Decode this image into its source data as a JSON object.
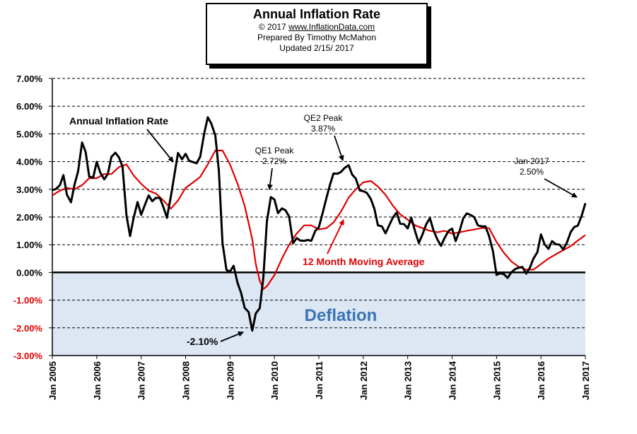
{
  "header": {
    "title": "Annual  Inflation Rate",
    "copyright_prefix": "© 2017  ",
    "site": "www.InflationData.com",
    "prepared": "Prepared  By Timothy McMahon",
    "updated": "Updated  2/15/ 2017"
  },
  "colors": {
    "inflation_line": "#000000",
    "moving_average_line": "#e00000",
    "deflation_fill": "#dde6f3",
    "deflation_text": "#3a74b4",
    "negative_tick_text": "#e00000"
  },
  "chart_data": {
    "type": "line",
    "title": "Annual  Inflation Rate",
    "ylim": [
      -3,
      7
    ],
    "y_ticks": [
      "7.00%",
      "6.00%",
      "5.00%",
      "4.00%",
      "3.00%",
      "2.00%",
      "1.00%",
      "0.00%",
      "-1.00%",
      "-2.00%",
      "-3.00%"
    ],
    "y_tick_values": [
      7,
      6,
      5,
      4,
      3,
      2,
      1,
      0,
      -1,
      -2,
      -3
    ],
    "xlim": [
      2005,
      2017
    ],
    "x_ticks": [
      "Jan 2005",
      "Jan 2006",
      "Jan 2007",
      "Jan 2008",
      "Jan 2009",
      "Jan 2010",
      "Jan 2011",
      "Jan 2012",
      "Jan 2013",
      "Jan 2014",
      "Jan 2015",
      "Jan 2016",
      "Jan 2017"
    ],
    "x_tick_values": [
      2005,
      2006,
      2007,
      2008,
      2009,
      2010,
      2011,
      2012,
      2013,
      2014,
      2015,
      2016,
      2017
    ],
    "grid": "horizontal dashed",
    "shaded_region": {
      "label": "Deflation",
      "y_from": -3,
      "y_to": 0
    },
    "series": [
      {
        "name": "Annual Inflation Rate",
        "x": [
          2005.0,
          2005.08,
          2005.17,
          2005.25,
          2005.33,
          2005.42,
          2005.5,
          2005.58,
          2005.67,
          2005.75,
          2005.83,
          2005.92,
          2006.0,
          2006.08,
          2006.17,
          2006.25,
          2006.33,
          2006.42,
          2006.5,
          2006.58,
          2006.67,
          2006.75,
          2006.83,
          2006.92,
          2007.0,
          2007.08,
          2007.17,
          2007.25,
          2007.33,
          2007.42,
          2007.5,
          2007.58,
          2007.67,
          2007.75,
          2007.83,
          2007.92,
          2008.0,
          2008.08,
          2008.17,
          2008.25,
          2008.33,
          2008.42,
          2008.5,
          2008.58,
          2008.67,
          2008.75,
          2008.83,
          2008.92,
          2009.0,
          2009.08,
          2009.17,
          2009.25,
          2009.33,
          2009.42,
          2009.5,
          2009.58,
          2009.67,
          2009.75,
          2009.83,
          2009.92,
          2010.0,
          2010.08,
          2010.17,
          2010.25,
          2010.33,
          2010.42,
          2010.5,
          2010.58,
          2010.67,
          2010.75,
          2010.83,
          2010.92,
          2011.0,
          2011.08,
          2011.17,
          2011.25,
          2011.33,
          2011.42,
          2011.5,
          2011.58,
          2011.67,
          2011.75,
          2011.83,
          2011.92,
          2012.0,
          2012.08,
          2012.17,
          2012.25,
          2012.33,
          2012.42,
          2012.5,
          2012.58,
          2012.67,
          2012.75,
          2012.83,
          2012.92,
          2013.0,
          2013.08,
          2013.17,
          2013.25,
          2013.33,
          2013.42,
          2013.5,
          2013.58,
          2013.67,
          2013.75,
          2013.83,
          2013.92,
          2014.0,
          2014.08,
          2014.17,
          2014.25,
          2014.33,
          2014.42,
          2014.5,
          2014.58,
          2014.67,
          2014.75,
          2014.83,
          2014.92,
          2015.0,
          2015.08,
          2015.17,
          2015.25,
          2015.33,
          2015.42,
          2015.5,
          2015.58,
          2015.67,
          2015.75,
          2015.83,
          2015.92,
          2016.0,
          2016.08,
          2016.17,
          2016.25,
          2016.33,
          2016.42,
          2016.5,
          2016.58,
          2016.67,
          2016.75,
          2016.83,
          2016.92,
          2017.0
        ],
        "values": [
          2.97,
          3.01,
          3.15,
          3.51,
          2.8,
          2.53,
          3.17,
          3.64,
          4.69,
          4.35,
          3.46,
          3.42,
          3.99,
          3.6,
          3.36,
          3.55,
          4.17,
          4.32,
          4.15,
          3.82,
          2.06,
          1.31,
          1.97,
          2.54,
          2.08,
          2.42,
          2.78,
          2.57,
          2.69,
          2.69,
          2.36,
          1.97,
          2.76,
          3.54,
          4.31,
          4.08,
          4.28,
          4.03,
          3.98,
          3.94,
          4.18,
          5.02,
          5.6,
          5.37,
          4.94,
          3.66,
          1.07,
          0.09,
          0.03,
          0.24,
          -0.38,
          -0.74,
          -1.28,
          -1.43,
          -2.1,
          -1.48,
          -1.29,
          -0.18,
          1.84,
          2.72,
          2.63,
          2.14,
          2.31,
          2.24,
          2.02,
          1.05,
          1.24,
          1.15,
          1.14,
          1.17,
          1.14,
          1.5,
          1.63,
          2.11,
          2.68,
          3.16,
          3.57,
          3.56,
          3.63,
          3.77,
          3.87,
          3.53,
          3.39,
          2.96,
          2.93,
          2.87,
          2.65,
          2.3,
          1.7,
          1.66,
          1.41,
          1.69,
          1.99,
          2.16,
          1.76,
          1.74,
          1.59,
          1.98,
          1.47,
          1.06,
          1.36,
          1.75,
          1.96,
          1.52,
          1.18,
          0.96,
          1.24,
          1.5,
          1.58,
          1.13,
          1.51,
          1.95,
          2.13,
          2.07,
          1.99,
          1.7,
          1.66,
          1.66,
          1.32,
          0.76,
          -0.09,
          -0.03,
          -0.07,
          -0.2,
          0.0,
          0.12,
          0.17,
          0.2,
          -0.04,
          0.17,
          0.5,
          0.73,
          1.37,
          1.02,
          0.85,
          1.13,
          1.02,
          1.0,
          0.83,
          1.06,
          1.46,
          1.64,
          1.69,
          2.07,
          2.5
        ]
      },
      {
        "name": "12 Month Moving Average",
        "x": [
          2005.0,
          2005.17,
          2005.33,
          2005.5,
          2005.67,
          2005.83,
          2006.0,
          2006.17,
          2006.33,
          2006.5,
          2006.67,
          2006.83,
          2007.0,
          2007.17,
          2007.33,
          2007.5,
          2007.67,
          2007.83,
          2008.0,
          2008.17,
          2008.33,
          2008.5,
          2008.67,
          2008.83,
          2009.0,
          2009.17,
          2009.33,
          2009.5,
          2009.58,
          2009.67,
          2009.75,
          2009.83,
          2010.0,
          2010.17,
          2010.33,
          2010.5,
          2010.67,
          2010.83,
          2011.0,
          2011.17,
          2011.33,
          2011.5,
          2011.67,
          2011.83,
          2012.0,
          2012.17,
          2012.33,
          2012.5,
          2012.67,
          2012.83,
          2013.0,
          2013.17,
          2013.33,
          2013.5,
          2013.67,
          2013.83,
          2014.0,
          2014.17,
          2014.33,
          2014.5,
          2014.67,
          2014.83,
          2015.0,
          2015.17,
          2015.33,
          2015.5,
          2015.67,
          2015.83,
          2016.0,
          2016.17,
          2016.33,
          2016.5,
          2016.67,
          2016.83,
          2017.0
        ],
        "values": [
          2.78,
          2.95,
          3.05,
          3.0,
          3.15,
          3.4,
          3.4,
          3.55,
          3.55,
          3.8,
          3.9,
          3.5,
          3.2,
          2.95,
          2.85,
          2.6,
          2.3,
          2.6,
          3.05,
          3.25,
          3.45,
          3.9,
          4.4,
          4.4,
          3.9,
          3.2,
          2.4,
          1.2,
          0.3,
          -0.3,
          -0.6,
          -0.5,
          -0.1,
          0.5,
          1.0,
          1.4,
          1.7,
          1.7,
          1.55,
          1.6,
          1.8,
          2.2,
          2.7,
          3.0,
          3.25,
          3.3,
          3.1,
          2.8,
          2.4,
          2.1,
          1.9,
          1.7,
          1.6,
          1.5,
          1.45,
          1.5,
          1.4,
          1.45,
          1.5,
          1.55,
          1.6,
          1.6,
          1.1,
          0.7,
          0.4,
          0.2,
          0.1,
          0.1,
          0.3,
          0.5,
          0.65,
          0.8,
          0.95,
          1.15,
          1.35
        ]
      }
    ],
    "annotations": [
      {
        "text": "Annual Inflation Rate",
        "target_x": 2007.75,
        "target_y": 3.9
      },
      {
        "text": "QE1 Peak",
        "text2": "2.72%",
        "target_x": 2009.98,
        "target_y": 2.9
      },
      {
        "text": "QE2 Peak",
        "text2": "3.87%",
        "target_x": 2011.67,
        "target_y": 4.0
      },
      {
        "text": "Jan 2017",
        "text2": "2.50%",
        "target_x": 2016.98,
        "target_y": 2.65
      },
      {
        "text": "12 Month Moving Average",
        "target_x": 2011.6,
        "target_y": 1.95
      },
      {
        "text": "-2.10%",
        "target_x": 2009.5,
        "target_y": -2.0
      },
      {
        "text": "Deflation"
      }
    ]
  }
}
